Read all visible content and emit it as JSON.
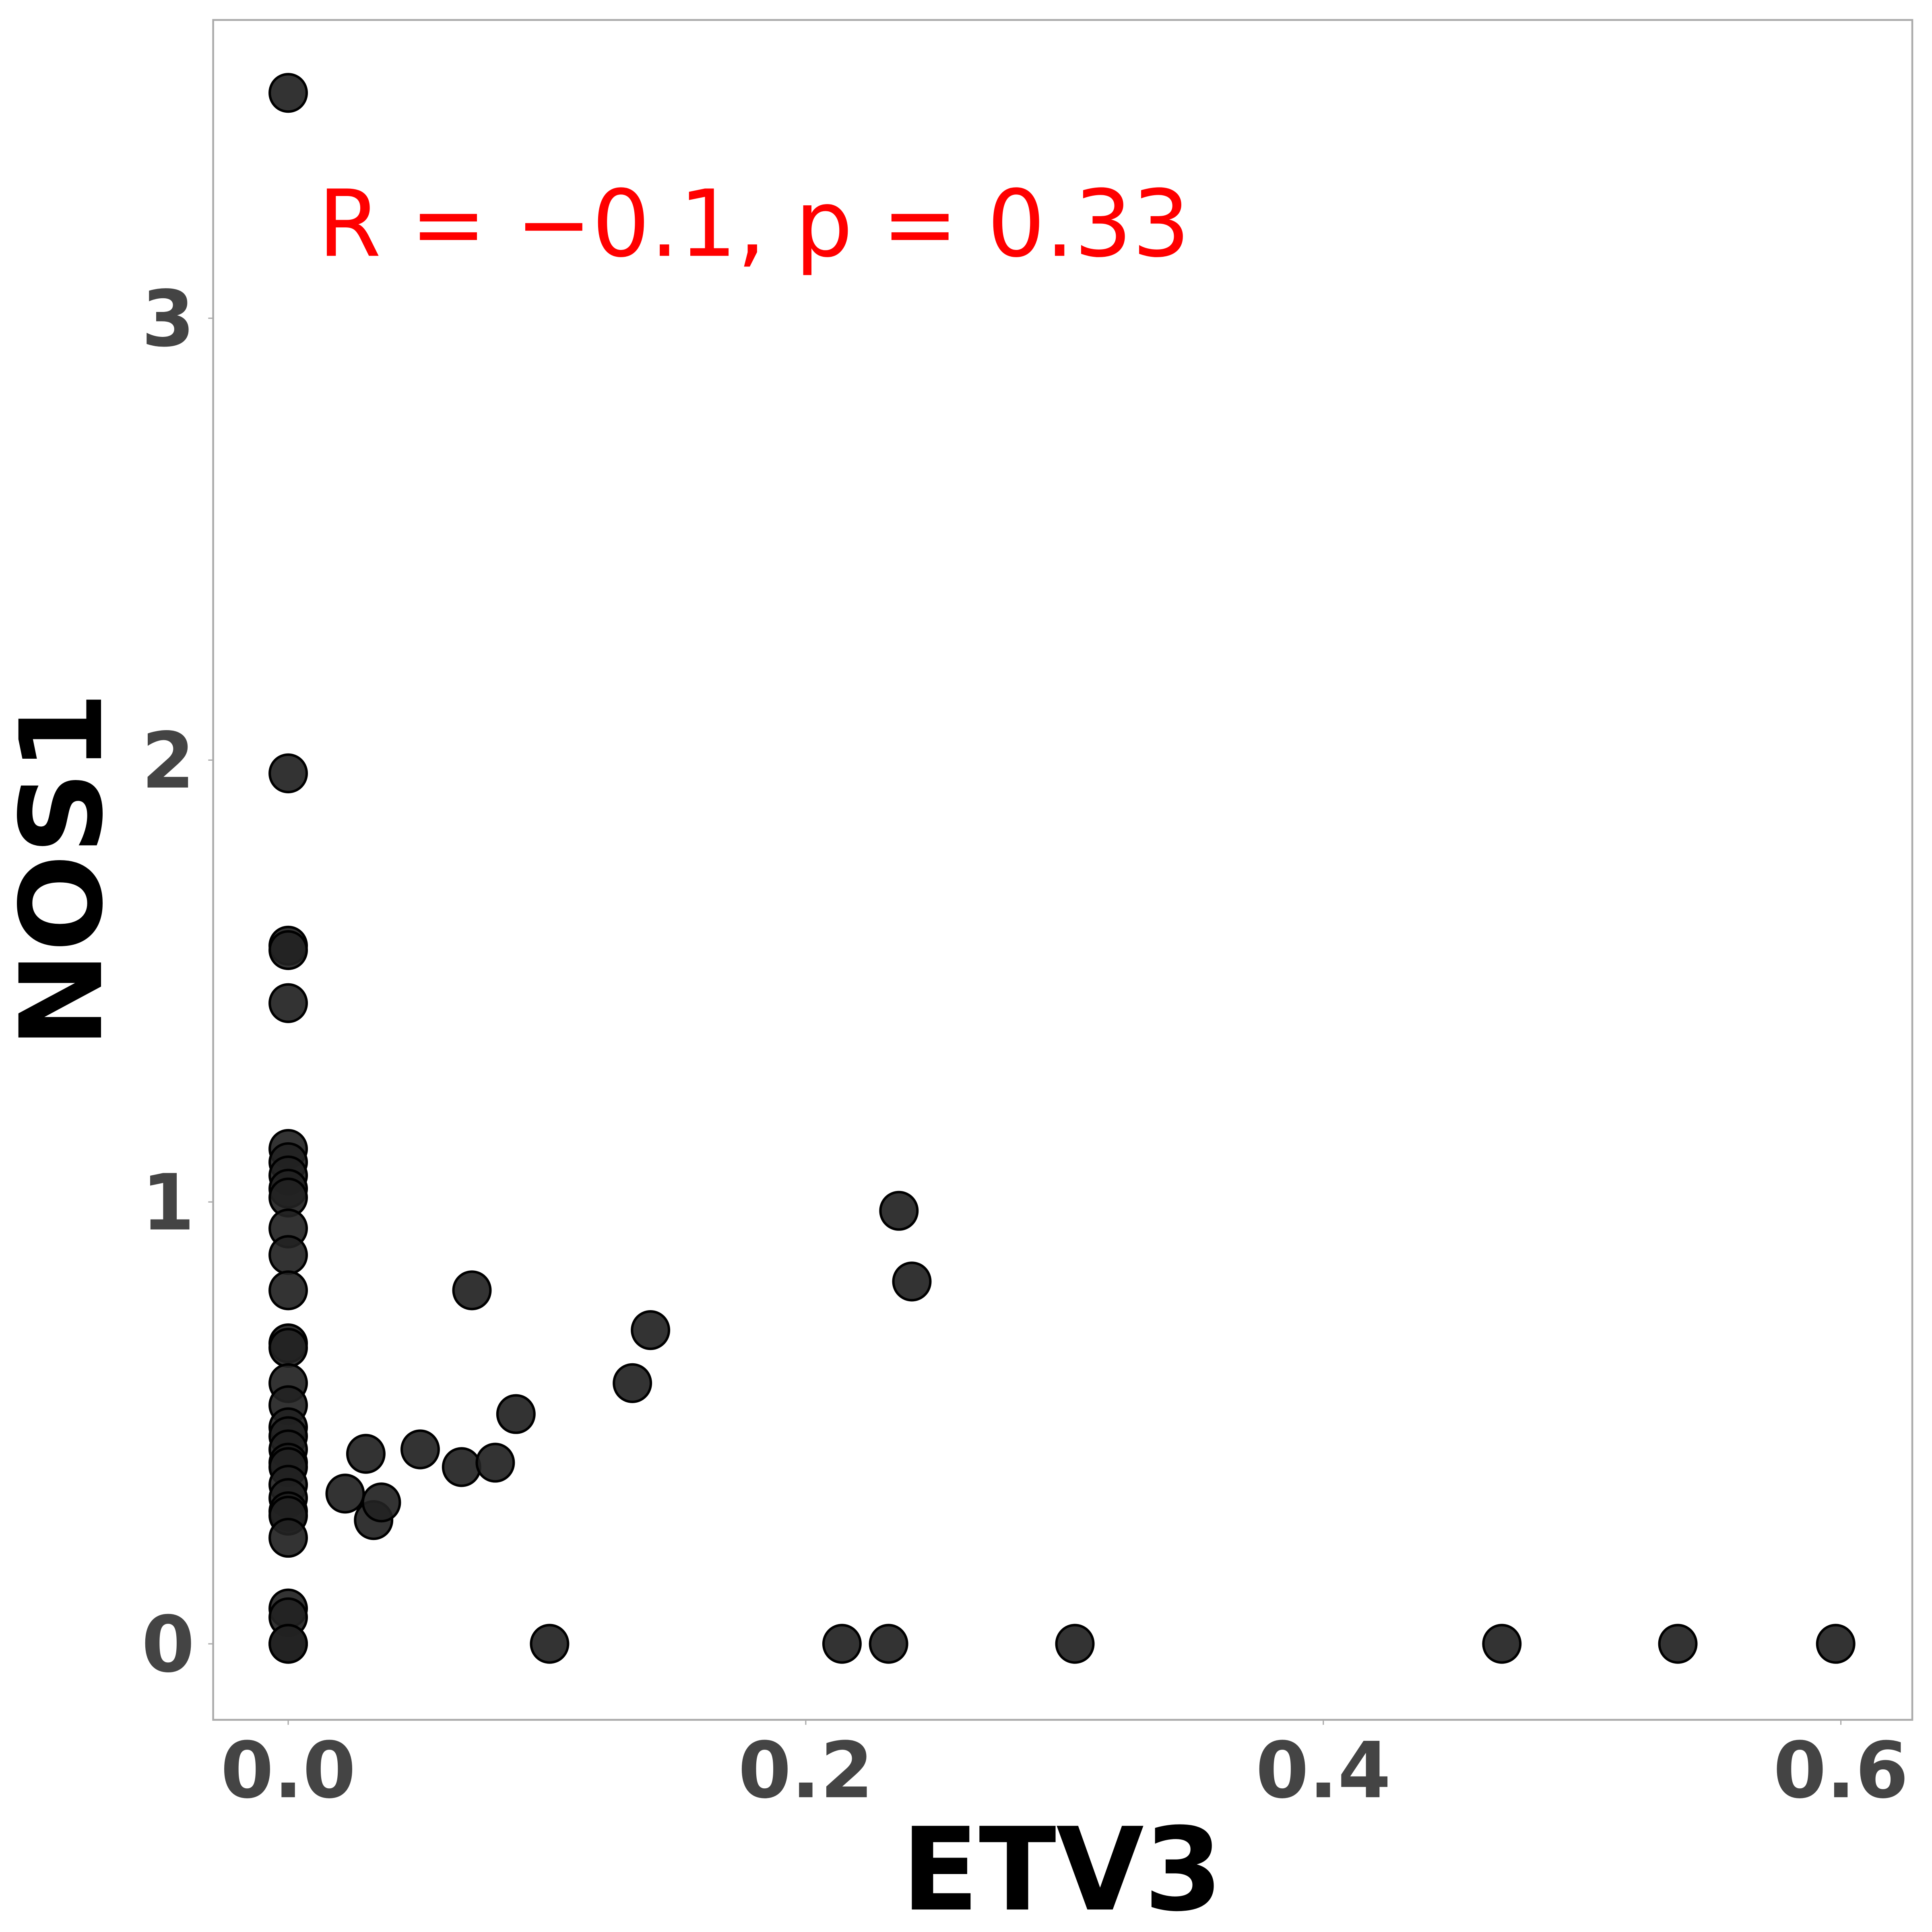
{
  "chart_data": {
    "type": "scatter",
    "annotation": "R = −0.1, p = 0.33",
    "annotation_color": "#ff0000",
    "xlabel": "ETV3",
    "ylabel": "NOS1",
    "color": "#222222",
    "xlim": [
      -0.029,
      0.6276
    ],
    "ylim": [
      -0.172,
      3.675
    ],
    "xticks": [
      {
        "value": 0,
        "label": "0.0"
      },
      0.2,
      0.4,
      0.6
    ],
    "yticks": [
      0,
      1,
      2,
      3
    ],
    "grid": false,
    "x": [
      0,
      0,
      0,
      0,
      0,
      0,
      0,
      0,
      0,
      0,
      0,
      0,
      0,
      0,
      0,
      0,
      0,
      0,
      0,
      0,
      0,
      0,
      0,
      0,
      0,
      0,
      0,
      0,
      0,
      0,
      0,
      0.022,
      0.03,
      0.033,
      0.036,
      0.051,
      0.067,
      0.071,
      0.08,
      0.088,
      0.101,
      0.133,
      0.14,
      0.214,
      0.232,
      0.236,
      0.241,
      0.304,
      0.469,
      0.537,
      0.598
    ],
    "y": [
      3.51,
      1.97,
      1.58,
      1.57,
      1.45,
      1.12,
      1.09,
      1.06,
      1.03,
      1.01,
      0.94,
      0.88,
      0.8,
      0.68,
      0.67,
      0.59,
      0.54,
      0.49,
      0.47,
      0.44,
      0.41,
      0.4,
      0.36,
      0.33,
      0.3,
      0.29,
      0.24,
      0.08,
      0.06,
      0,
      0,
      0.34,
      0.43,
      0.28,
      0.32,
      0.44,
      0.4,
      0.8,
      0.41,
      0.52,
      0,
      0.59,
      0.71,
      0,
      0,
      0.98,
      0.82,
      0,
      0,
      0,
      0
    ]
  }
}
